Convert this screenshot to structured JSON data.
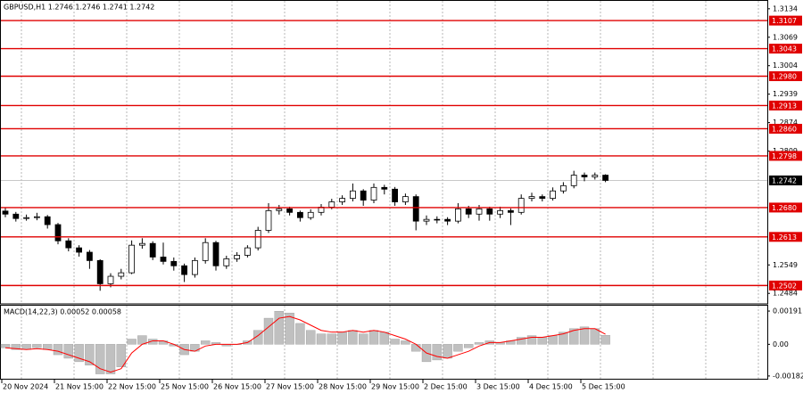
{
  "chart_data": [
    {
      "type": "candlestick",
      "title": "GBPUSD,H1  1.2746 1.2746 1.2741 1.2742",
      "categories": [
        "20 Nov 2024",
        null,
        null,
        null,
        null,
        "21 Nov 15:00",
        null,
        null,
        null,
        null,
        "22 Nov 15:00",
        null,
        null,
        null,
        null,
        "25 Nov 15:00",
        null,
        null,
        null,
        null,
        "26 Nov 15:00",
        null,
        null,
        null,
        null,
        "27 Nov 15:00",
        null,
        null,
        null,
        null,
        "28 Nov 15:00",
        null,
        null,
        null,
        null,
        "29 Nov 15:00",
        null,
        null,
        null,
        null,
        "2 Dec 15:00",
        null,
        null,
        null,
        null,
        "3 Dec 15:00",
        null,
        null,
        null,
        null,
        "4 Dec 15:00",
        null,
        null,
        null,
        null,
        "5 Dec 15:00",
        null,
        null
      ],
      "open": [
        1.2672,
        1.2665,
        1.2655,
        1.2657,
        1.2659,
        1.2641,
        1.2604,
        1.2588,
        1.2578,
        1.2559,
        1.2506,
        1.2523,
        1.2531,
        1.2594,
        1.2598,
        1.2567,
        1.2557,
        1.2547,
        1.2527,
        1.2559,
        1.26,
        1.2547,
        1.2563,
        1.2571,
        1.2588,
        1.2628,
        1.2673,
        1.2677,
        1.2669,
        1.2657,
        1.2669,
        1.2681,
        1.2693,
        1.2701,
        1.2718,
        1.2697,
        1.2726,
        1.2722,
        1.2693,
        1.2705,
        1.2649,
        1.2653,
        1.2653,
        1.2649,
        1.2677,
        1.2665,
        1.2677,
        1.2665,
        1.2673,
        1.2669,
        1.2701,
        1.2705,
        1.2701,
        1.2718,
        1.273,
        1.2754,
        1.275,
        1.2754
      ],
      "high": [
        1.268,
        1.267,
        1.2664,
        1.2668,
        1.2663,
        1.2645,
        1.261,
        1.2594,
        1.2583,
        1.2562,
        1.253,
        1.254,
        1.2605,
        1.261,
        1.2603,
        1.26,
        1.2566,
        1.2552,
        1.2566,
        1.261,
        1.2604,
        1.257,
        1.2578,
        1.2594,
        1.2636,
        1.269,
        1.2686,
        1.2682,
        1.2673,
        1.2676,
        1.2688,
        1.27,
        1.2708,
        1.2735,
        1.2722,
        1.2735,
        1.2732,
        1.2727,
        1.2712,
        1.271,
        1.2662,
        1.266,
        1.2658,
        1.269,
        1.2684,
        1.2686,
        1.2682,
        1.2682,
        1.2678,
        1.271,
        1.2714,
        1.271,
        1.2726,
        1.2738,
        1.2764,
        1.276,
        1.276,
        1.2756
      ],
      "low": [
        1.2658,
        1.2648,
        1.265,
        1.2651,
        1.2632,
        1.2596,
        1.258,
        1.2568,
        1.254,
        1.249,
        1.2498,
        1.2516,
        1.2528,
        1.2586,
        1.256,
        1.255,
        1.2536,
        1.251,
        1.252,
        1.2552,
        1.2536,
        1.254,
        1.2556,
        1.2566,
        1.2582,
        1.2622,
        1.2664,
        1.2662,
        1.2648,
        1.2652,
        1.2662,
        1.2676,
        1.2686,
        1.2694,
        1.2684,
        1.269,
        1.271,
        1.2684,
        1.2686,
        1.2628,
        1.264,
        1.2644,
        1.264,
        1.2644,
        1.2656,
        1.265,
        1.265,
        1.2656,
        1.264,
        1.2664,
        1.2694,
        1.2694,
        1.2696,
        1.2712,
        1.2724,
        1.274,
        1.2744,
        1.2738
      ],
      "close": [
        1.2665,
        1.2655,
        1.2657,
        1.2659,
        1.2641,
        1.2604,
        1.2588,
        1.2578,
        1.2559,
        1.2506,
        1.2523,
        1.2531,
        1.2594,
        1.2598,
        1.2567,
        1.2557,
        1.2547,
        1.2527,
        1.2559,
        1.26,
        1.2547,
        1.2563,
        1.2571,
        1.2588,
        1.2628,
        1.2673,
        1.2677,
        1.2669,
        1.2657,
        1.2669,
        1.2681,
        1.2693,
        1.2701,
        1.2718,
        1.2697,
        1.2726,
        1.2722,
        1.2693,
        1.2705,
        1.2649,
        1.2653,
        1.2653,
        1.2649,
        1.2677,
        1.2665,
        1.2677,
        1.2665,
        1.2673,
        1.2669,
        1.2701,
        1.2705,
        1.2701,
        1.2718,
        1.273,
        1.2754,
        1.275,
        1.2754,
        1.2742
      ],
      "colors": {
        "bull": "#ffffff",
        "bear": "#000000",
        "wick": "#000000"
      },
      "ylim": [
        1.246,
        1.3152
      ],
      "yticks": [
        1.3134,
        1.3069,
        1.3004,
        1.2939,
        1.2874,
        1.2809,
        1.2549,
        1.2484
      ],
      "levels": [
        {
          "value": 1.3107,
          "label": "1.3107"
        },
        {
          "value": 1.3043,
          "label": "1.3043"
        },
        {
          "value": 1.298,
          "label": "1.2980"
        },
        {
          "value": 1.2913,
          "label": "1.2913"
        },
        {
          "value": 1.286,
          "label": "1.2860"
        },
        {
          "value": 1.2798,
          "label": "1.2798"
        },
        {
          "value": 1.268,
          "label": "1.2680"
        },
        {
          "value": 1.2613,
          "label": "1.2613"
        },
        {
          "value": 1.2502,
          "label": "1.2502"
        }
      ],
      "level_color": "#e00000",
      "current_price": 1.2742
    },
    {
      "type": "macd",
      "title": "MACD(14,22,3) 0.00052 0.00058",
      "ylim": [
        -0.00203,
        0.00222
      ],
      "yticks": [
        0.00191,
        {
          "value": 0,
          "label": "0.00"
        },
        -0.00182
      ],
      "series": [
        {
          "name": "MACD",
          "kind": "histogram",
          "color": "#c0c0c0",
          "values": [
            -0.0002,
            -0.0003,
            -0.0003,
            -0.0002,
            -0.0003,
            -0.0006,
            -0.0008,
            -0.001,
            -0.0012,
            -0.0017,
            -0.0017,
            -0.0013,
            0.0003,
            0.0005,
            0.0003,
            0.0002,
            -0.0001,
            -0.0006,
            -0.0004,
            0.0002,
            0.0001,
            -0.0001,
            0,
            0.0002,
            0.0008,
            0.0015,
            0.0019,
            0.0018,
            0.0012,
            0.0008,
            0.0006,
            0.0006,
            0.0007,
            0.0008,
            0.0006,
            0.0008,
            0.0007,
            0.0003,
            0.0002,
            -0.0004,
            -0.001,
            -0.0009,
            -0.0008,
            -0.0004,
            -0.0002,
            0.0001,
            0.0002,
            0.0001,
            0.0002,
            0.0004,
            0.0005,
            0.0004,
            0.0005,
            0.0007,
            0.0009,
            0.001,
            0.0009,
            0.00052
          ]
        },
        {
          "name": "Signal",
          "kind": "line",
          "color": "#ff0000",
          "values": [
            -0.0002,
            -0.00025,
            -0.0003,
            -0.00025,
            -0.0003,
            -0.0004,
            -0.0006,
            -0.0008,
            -0.001,
            -0.0014,
            -0.0016,
            -0.0014,
            -0.0005,
            0,
            0.0002,
            0.0002,
            0,
            -0.0003,
            -0.0004,
            -0.0001,
            0,
            0,
            0,
            0.0001,
            0.0005,
            0.001,
            0.0015,
            0.0016,
            0.0014,
            0.0011,
            0.0008,
            0.0007,
            0.0007,
            0.0008,
            0.0007,
            0.0008,
            0.0007,
            0.0005,
            0.0003,
            0,
            -0.0005,
            -0.0007,
            -0.0008,
            -0.0006,
            -0.0004,
            -0.0001,
            0.0001,
            0.0001,
            0.0002,
            0.0003,
            0.0004,
            0.0004,
            0.0005,
            0.0006,
            0.0008,
            0.0009,
            0.0009,
            0.00058
          ]
        }
      ]
    }
  ]
}
